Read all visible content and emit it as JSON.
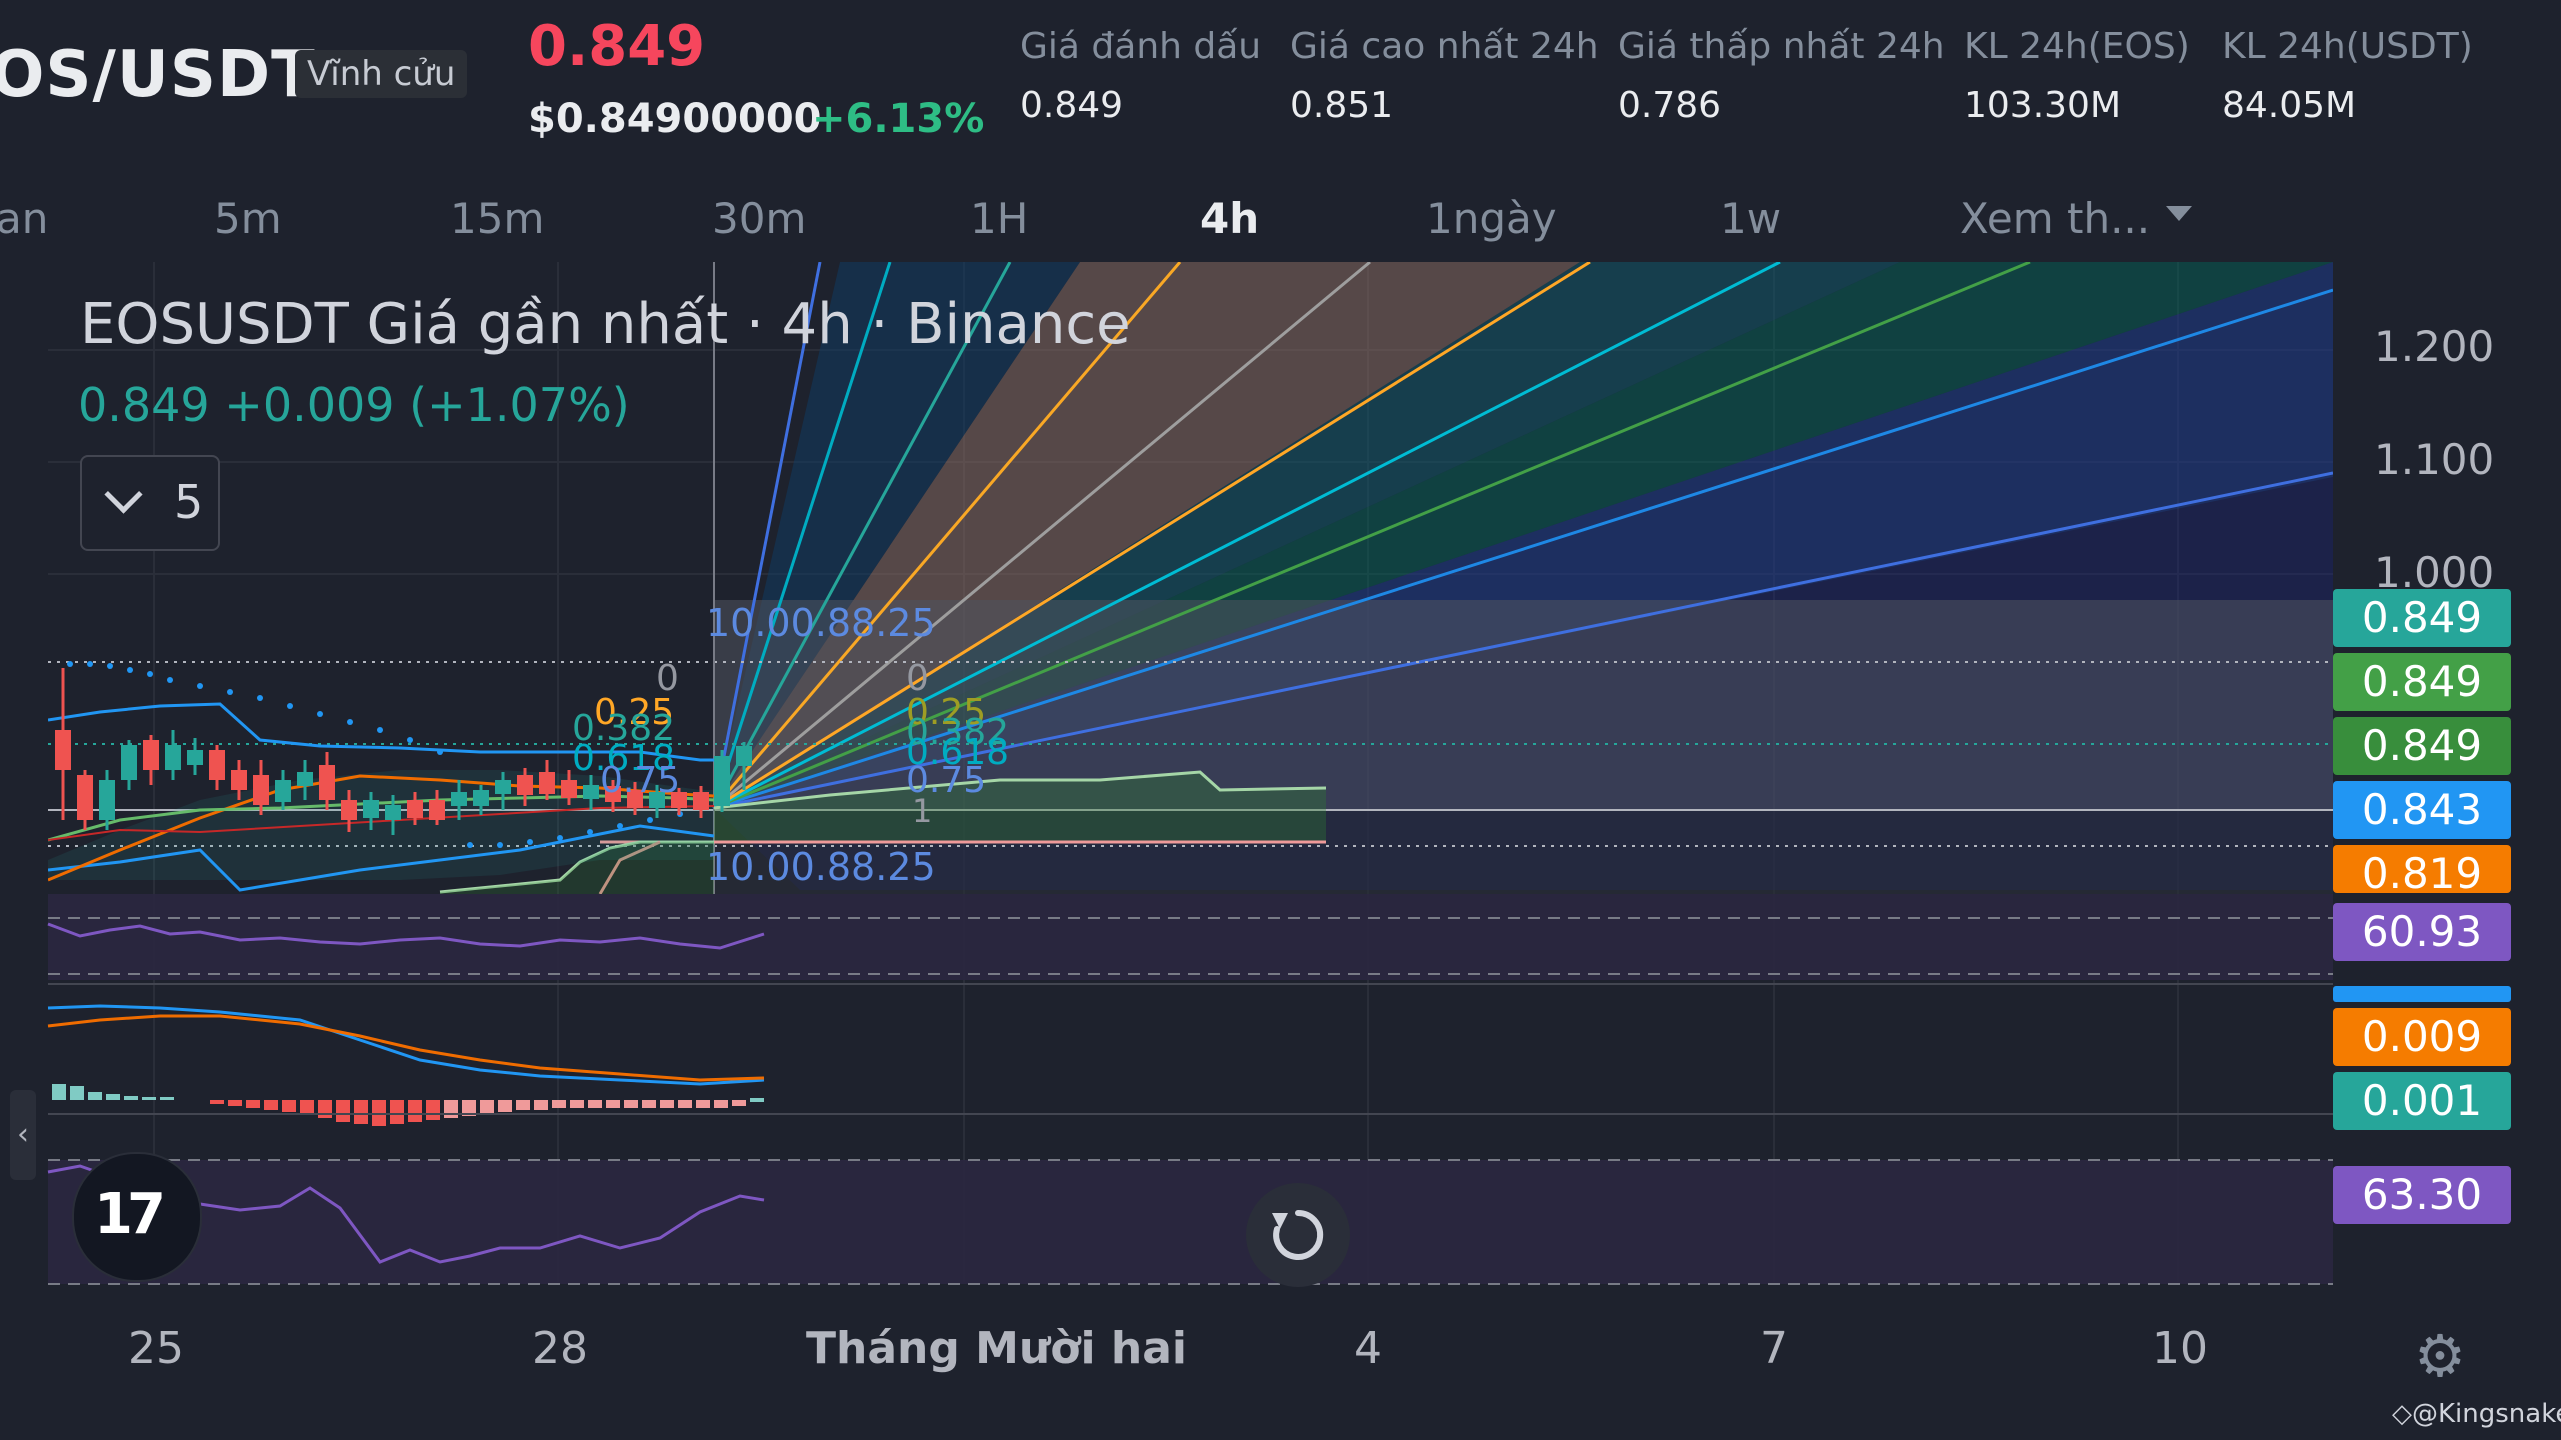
{
  "header": {
    "symbol": "OS/USDT",
    "contract_type": "Vĩnh cửu",
    "last_price": "0.849",
    "usd_price": "$0.84900000",
    "change_pct": "+6.13%",
    "stats": [
      {
        "label": "Giá đánh dấu",
        "value": "0.849"
      },
      {
        "label": "Giá cao nhất 24h",
        "value": "0.851"
      },
      {
        "label": "Giá thấp nhất 24h",
        "value": "0.786"
      },
      {
        "label": "KL 24h(EOS)",
        "value": "103.30M"
      },
      {
        "label": "KL 24h(USDT)",
        "value": "84.05M"
      }
    ]
  },
  "timeframes": [
    {
      "label": "an"
    },
    {
      "label": "5m"
    },
    {
      "label": "15m"
    },
    {
      "label": "30m"
    },
    {
      "label": "1H"
    },
    {
      "label": "4h",
      "active": true
    },
    {
      "label": "1ngày"
    },
    {
      "label": "1w"
    },
    {
      "label": "Xem th..."
    }
  ],
  "legend": {
    "title": "EOSUSDT Giá gần nhất · 4h · Binance",
    "values": "0.849  +0.009 (+1.07%)",
    "collapsed_count": "5"
  },
  "price_axis": {
    "ticks": [
      "1.200",
      "1.100",
      "1.000"
    ]
  },
  "price_tags": [
    {
      "value": "0.849",
      "color": "#26a69a"
    },
    {
      "value": "0.849",
      "color": "#43a047"
    },
    {
      "value": "0.849",
      "color": "#388e3c"
    },
    {
      "value": "0.843",
      "color": "#2196f3"
    },
    {
      "value": "0.819",
      "color": "#f57c00"
    }
  ],
  "indicator_tags": [
    {
      "value": "60.93",
      "color": "#7e57c2"
    },
    {
      "value": "0.009",
      "color": "#f57c00"
    },
    {
      "value": "0.001",
      "color": "#26a69a"
    },
    {
      "value": "63.30",
      "color": "#7e57c2"
    }
  ],
  "time_axis": {
    "labels": [
      "25",
      "28",
      "Tháng Mười hai",
      "4",
      "7",
      "10"
    ]
  },
  "fib_labels": {
    "top": "10.00.88.25",
    "bottom": "10.00.88.25",
    "zero": "0",
    "left_levels": [
      "0.25",
      "0.382",
      "0.5",
      "0.618",
      "0.75"
    ],
    "right_levels": [
      "0",
      "0.25",
      "0.382",
      "0.5",
      "0.618",
      "0.75"
    ],
    "one": "1"
  },
  "icons": {
    "logo": "tradingview-logo-icon",
    "reset": "reset-chart-icon",
    "settings": "gear-icon",
    "collapse": "chevron-down-icon",
    "watermark_icon": "binance-square-icon"
  },
  "branding": {
    "logo_text": "17",
    "watermark": "@Kingsnake"
  },
  "colors": {
    "bg": "#1e222d",
    "up": "#26a69a",
    "down": "#ef5350",
    "red_price": "#f6465d",
    "green_pct": "#2ebd85"
  }
}
